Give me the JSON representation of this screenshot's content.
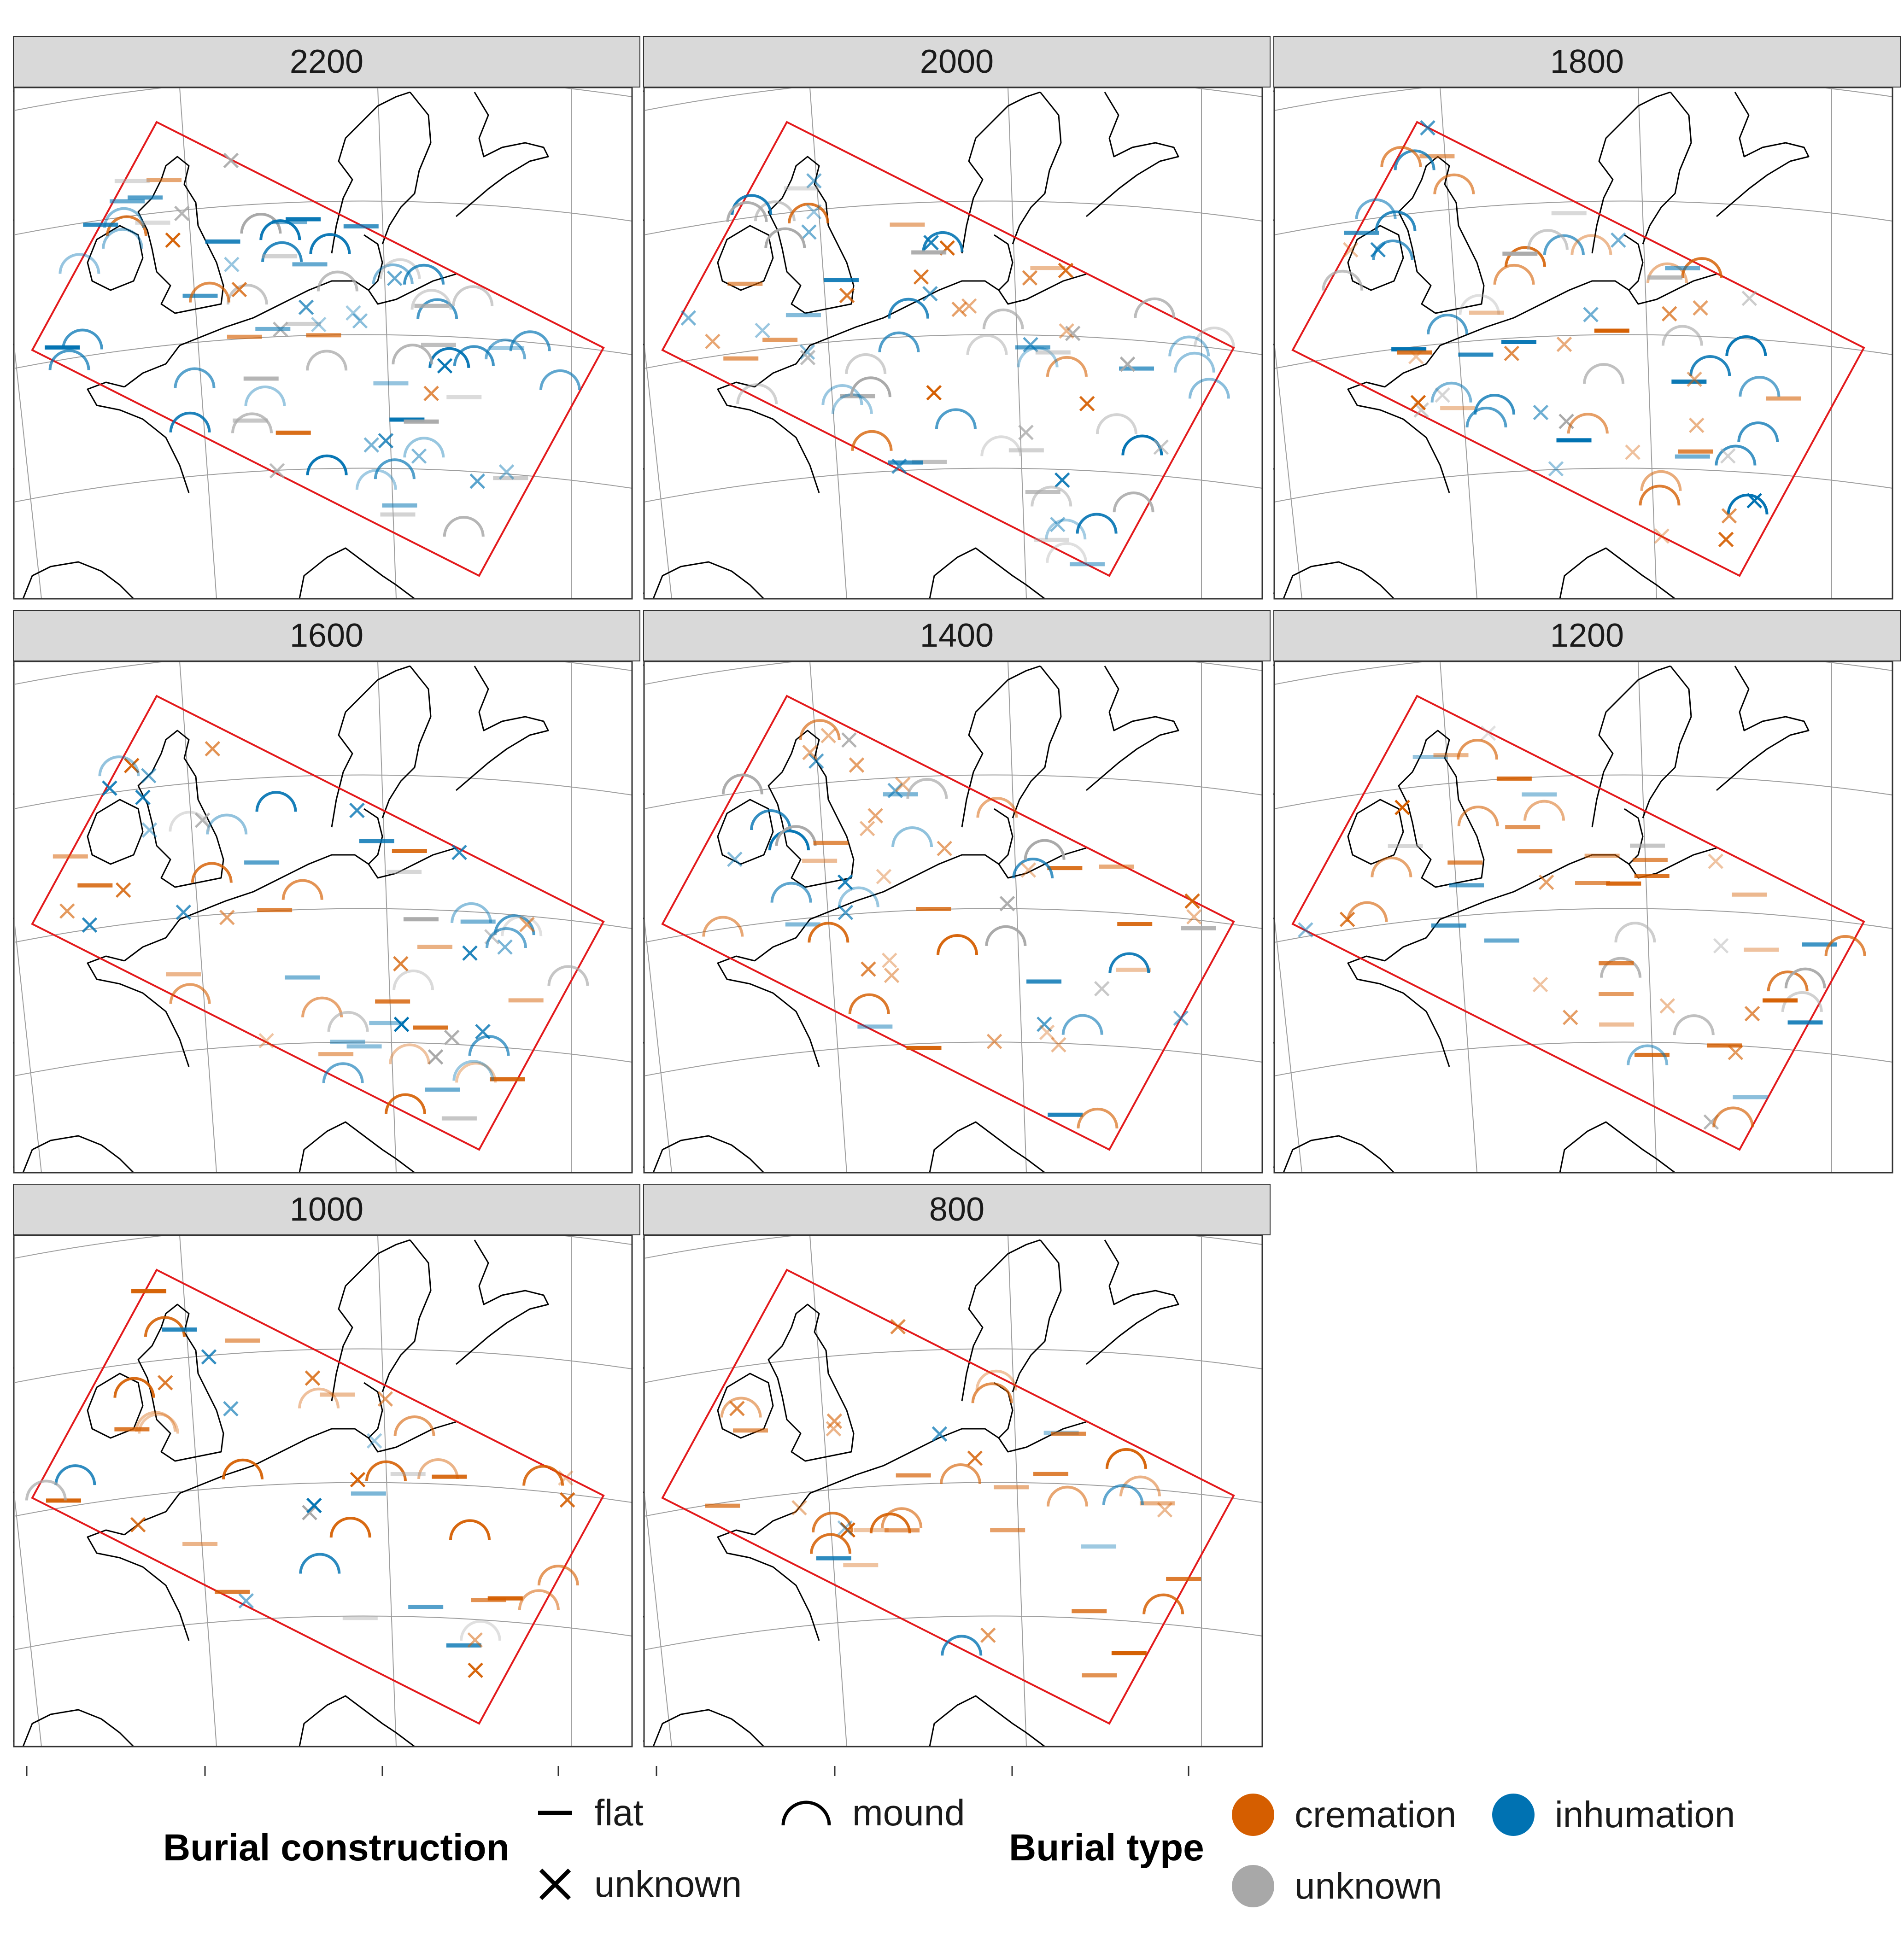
{
  "panels": [
    {
      "label": "2200"
    },
    {
      "label": "2000"
    },
    {
      "label": "1800"
    },
    {
      "label": "1600"
    },
    {
      "label": "1400"
    },
    {
      "label": "1200"
    },
    {
      "label": "1000"
    },
    {
      "label": "800"
    }
  ],
  "legend": {
    "construction": {
      "title": "Burial construction",
      "items": [
        {
          "symbol": "flat",
          "label": "flat"
        },
        {
          "symbol": "mound",
          "label": "mound"
        },
        {
          "symbol": "unknown",
          "label": "unknown"
        }
      ]
    },
    "type": {
      "title": "Burial type",
      "items": [
        {
          "color": "#d55e00",
          "label": "cremation"
        },
        {
          "color": "#0072b2",
          "label": "inhumation"
        },
        {
          "color": "#a8a8a8",
          "label": "unknown"
        }
      ]
    }
  },
  "colors": {
    "cremation": "#d55e00",
    "inhumation": "#0072b2",
    "unknown": "#a8a8a8",
    "region_outline": "#e31a1c",
    "coastline": "#000000",
    "graticule": "#9e9e9e",
    "strip_fill": "#d9d9d9"
  },
  "map": {
    "projection": "conic",
    "region_outline": "rotated rectangle (red)",
    "graticule": true
  }
}
